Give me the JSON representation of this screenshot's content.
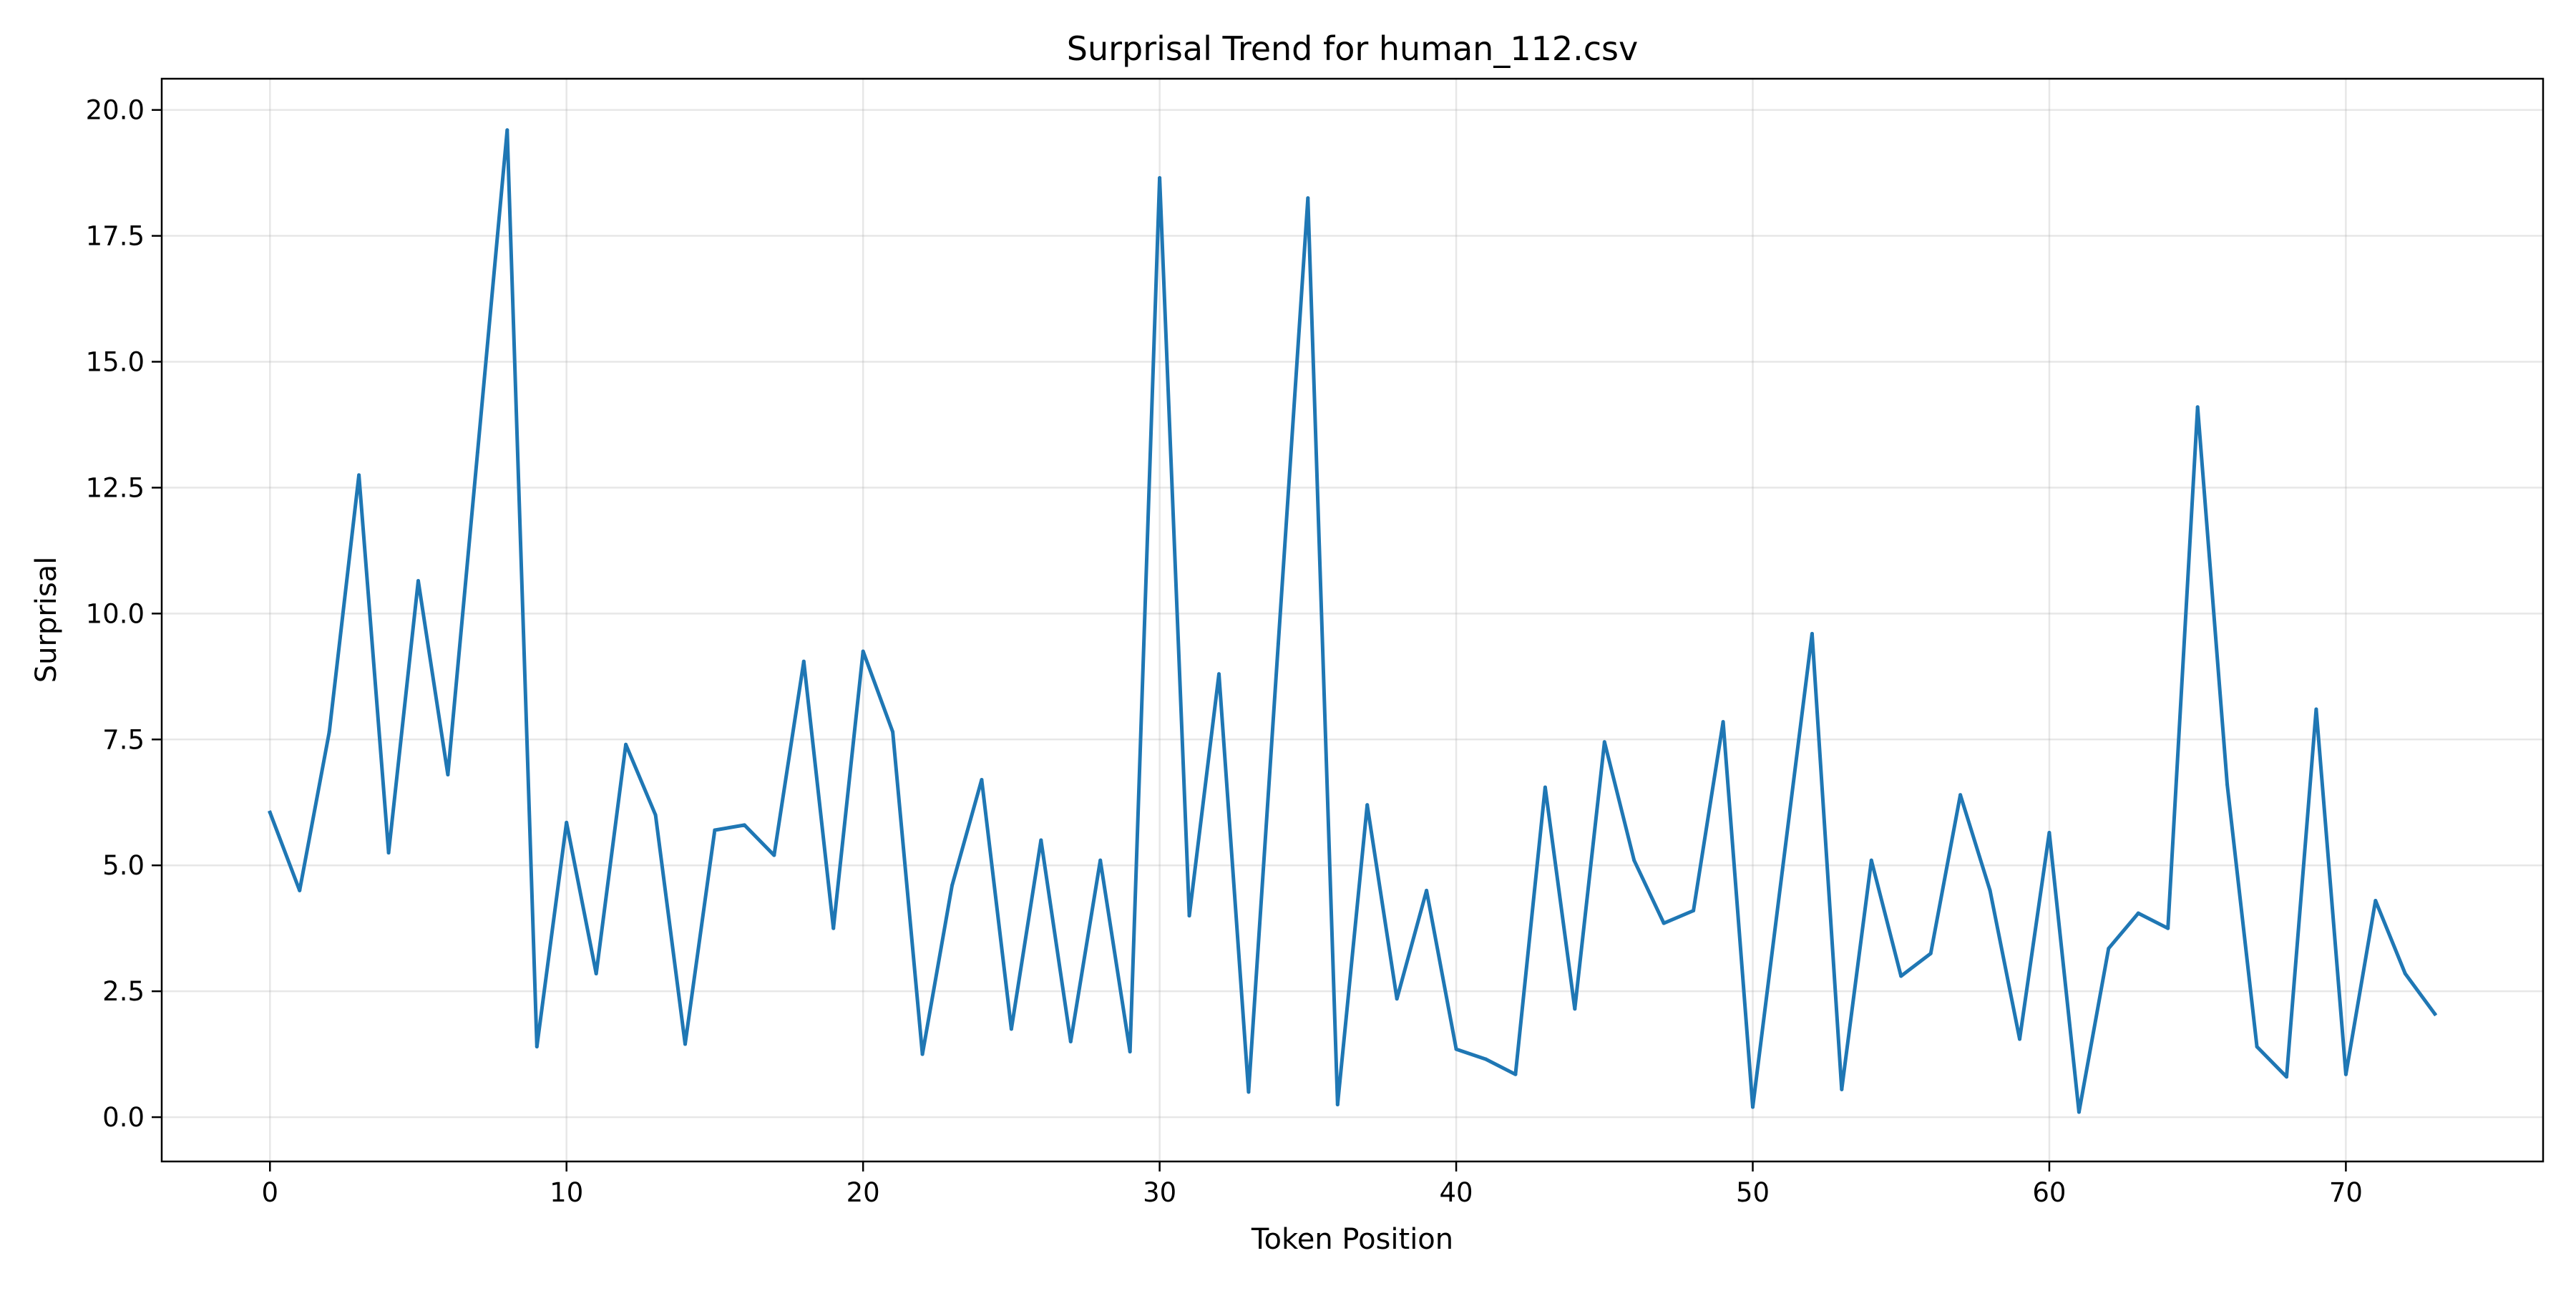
{
  "chart_data": {
    "type": "line",
    "title": "Surprisal Trend for human_112.csv",
    "xlabel": "Token Position",
    "ylabel": "Surprisal",
    "xlim": [
      -3.65,
      76.65
    ],
    "ylim": [
      -0.88,
      20.62
    ],
    "grid": true,
    "line_color": "#1f77b4",
    "x_ticks": [
      0,
      10,
      20,
      30,
      40,
      50,
      60,
      70
    ],
    "x_tick_labels": [
      "0",
      "10",
      "20",
      "30",
      "40",
      "50",
      "60",
      "70"
    ],
    "y_ticks": [
      0,
      2.5,
      5,
      7.5,
      10,
      12.5,
      15,
      17.5,
      20
    ],
    "y_tick_labels": [
      "0.0",
      "2.5",
      "5.0",
      "7.5",
      "10.0",
      "12.5",
      "15.0",
      "17.5",
      "20.0"
    ],
    "series": [
      {
        "x": [
          0,
          1,
          2,
          3,
          4,
          5,
          6,
          7,
          8,
          9,
          10,
          11,
          12,
          13,
          14,
          15,
          16,
          17,
          18,
          19,
          20,
          21,
          22,
          23,
          24,
          25,
          26,
          27,
          28,
          29,
          30,
          31,
          32,
          33,
          34,
          35,
          36,
          37,
          38,
          39,
          40,
          41,
          42,
          43,
          44,
          45,
          46,
          47,
          48,
          49,
          50,
          51,
          52,
          53,
          54,
          55,
          56,
          57,
          58,
          59,
          60,
          61,
          62,
          63,
          64,
          65,
          66,
          67,
          68,
          69,
          70,
          71,
          72,
          73
        ],
        "values": [
          6.05,
          4.5,
          7.65,
          12.75,
          5.25,
          10.65,
          6.8,
          13.2,
          19.6,
          1.4,
          5.85,
          2.85,
          7.4,
          6.0,
          1.45,
          5.7,
          5.8,
          5.2,
          9.05,
          3.75,
          9.25,
          7.65,
          1.25,
          4.6,
          6.7,
          1.75,
          5.5,
          1.5,
          5.1,
          1.3,
          18.65,
          4.0,
          8.8,
          0.5,
          9.4,
          18.25,
          0.25,
          6.2,
          2.35,
          4.5,
          1.35,
          1.15,
          0.85,
          6.55,
          2.15,
          7.45,
          5.1,
          3.85,
          4.1,
          7.85,
          0.2,
          4.9,
          9.6,
          0.55,
          5.1,
          2.8,
          3.25,
          6.4,
          4.5,
          1.55,
          5.65,
          0.1,
          3.35,
          4.05,
          3.75,
          14.1,
          6.6,
          1.4,
          0.8,
          8.1,
          0.85,
          4.3,
          2.85,
          2.05
        ]
      }
    ]
  }
}
